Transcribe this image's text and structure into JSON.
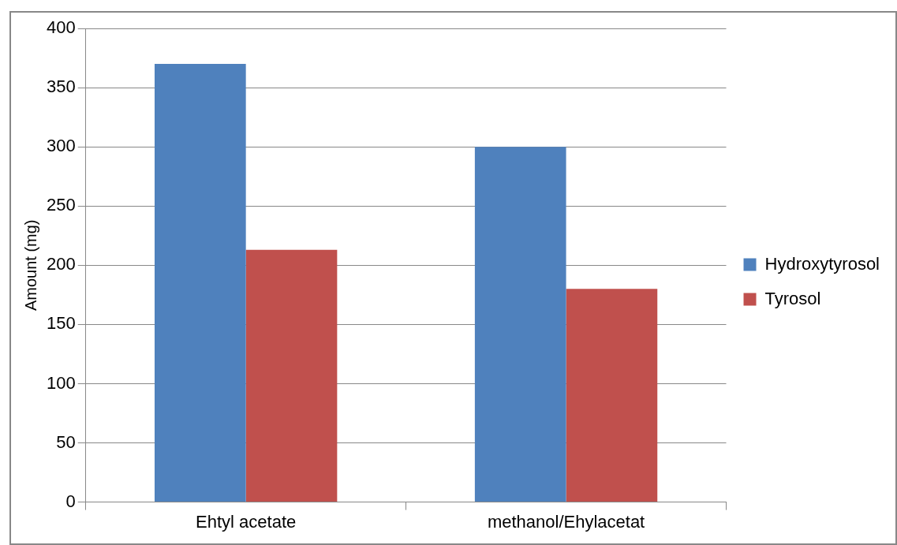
{
  "chart_data": {
    "type": "bar",
    "ylabel": "Amount (mg)",
    "categories": [
      "Ehtyl acetate",
      "methanol/Ehylacetat"
    ],
    "series": [
      {
        "name": "Hydroxytyrosol",
        "color": "#4f81bd",
        "values": [
          370,
          300
        ]
      },
      {
        "name": "Tyrosol",
        "color": "#c0504d",
        "values": [
          213,
          180
        ]
      }
    ],
    "ylim": [
      0,
      400
    ],
    "yticks": [
      0,
      50,
      100,
      150,
      200,
      250,
      300,
      350,
      400
    ],
    "grid": "y",
    "legend": "right"
  }
}
